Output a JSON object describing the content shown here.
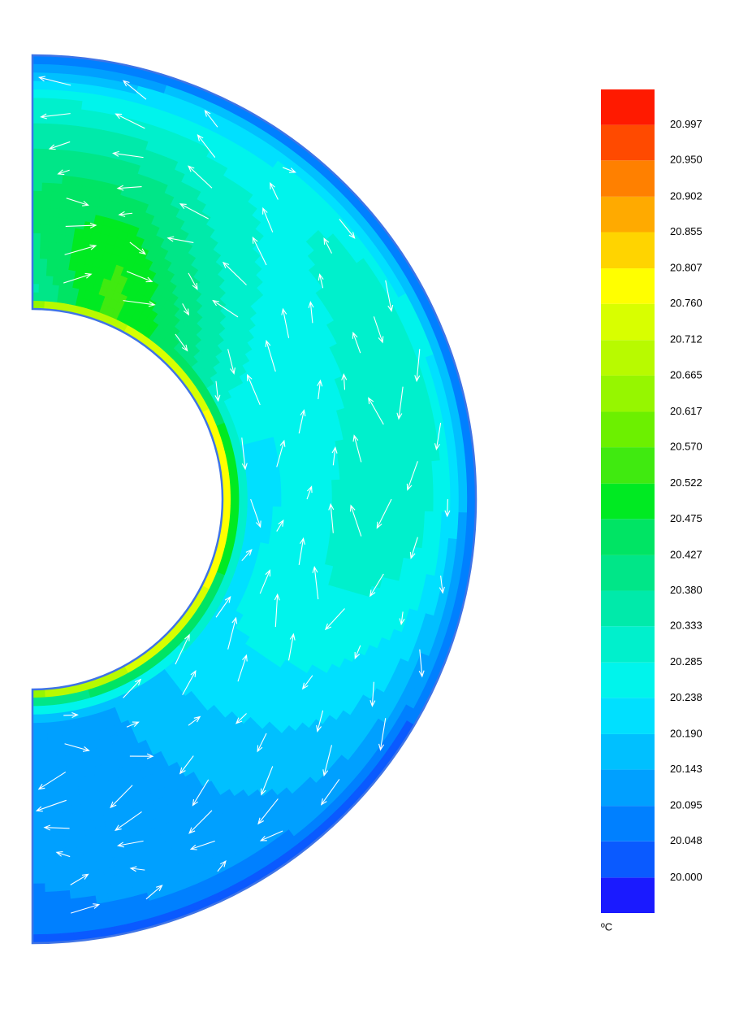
{
  "chart_data": {
    "type": "contour",
    "colorbar": {
      "unit": "ºC",
      "clim": [
        19.953,
        21.044
      ],
      "ticks": [
        {
          "value": 20.0,
          "label": "20.000"
        },
        20.048,
        20.095,
        20.143,
        {
          "value": 20.19,
          "label": "20.190"
        },
        20.238,
        20.285,
        20.333,
        {
          "value": 20.38,
          "label": "20.380"
        },
        20.427,
        20.475,
        20.522,
        {
          "value": 20.57,
          "label": "20.570"
        },
        20.617,
        20.665,
        20.712,
        {
          "value": 20.76,
          "label": "20.760"
        },
        20.807,
        20.855,
        20.902,
        {
          "value": 20.95,
          "label": "20.950"
        },
        20.997
      ],
      "colors": [
        "#1a1aff",
        "#0a5aff",
        "#0080ff",
        "#00a0ff",
        "#00c0ff",
        "#00e0ff",
        "#00f4ec",
        "#00f0cc",
        "#00eaaa",
        "#00e688",
        "#00e464",
        "#00ea22",
        "#40ea10",
        "#6cf000",
        "#96f600",
        "#b8fa00",
        "#d8ff00",
        "#ffff00",
        "#ffd400",
        "#ffaa00",
        "#ff8000",
        "#ff4a00",
        "#ff1a00"
      ]
    }
  }
}
